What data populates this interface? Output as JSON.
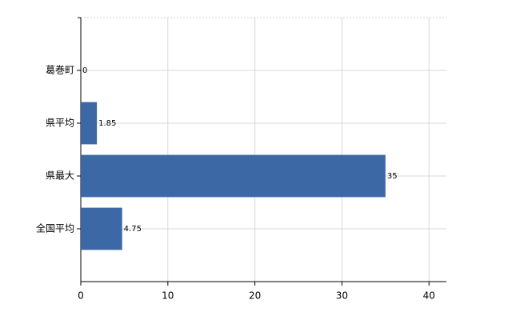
{
  "chart_data": {
    "type": "bar",
    "orientation": "horizontal",
    "categories": [
      "葛巻町",
      "県平均",
      "県最大",
      "全国平均"
    ],
    "values": [
      0,
      1.85,
      35,
      4.75
    ],
    "color": "#3c68a6",
    "xlim": [
      0,
      42
    ],
    "xticks": [
      0,
      10,
      20,
      30,
      40
    ],
    "grid": true
  }
}
